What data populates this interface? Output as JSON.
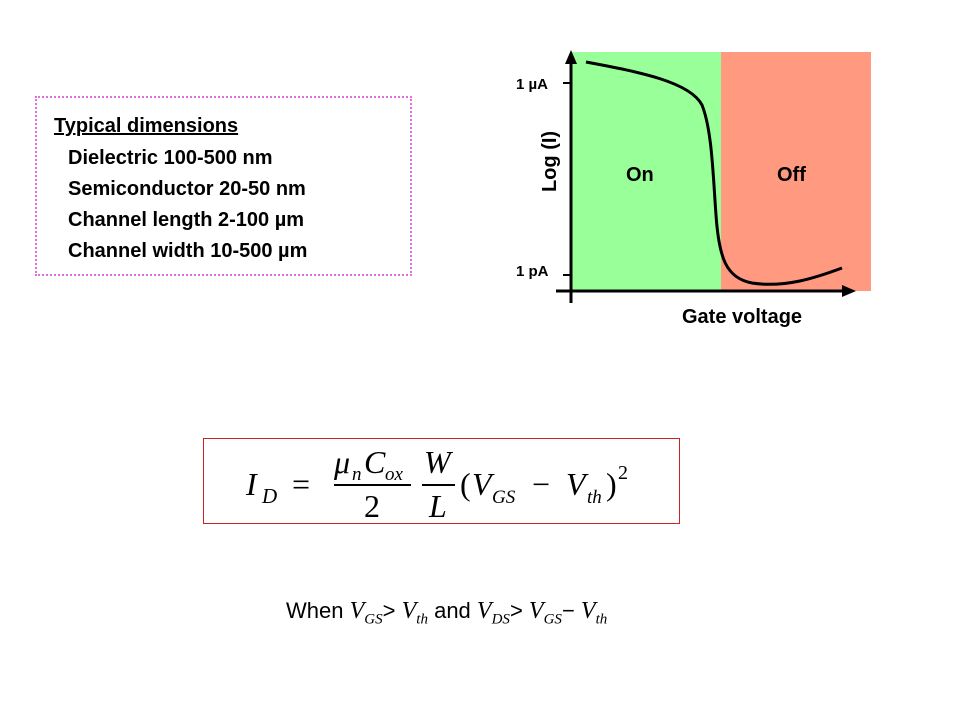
{
  "dimensions": {
    "heading": "Typical dimensions",
    "lines": [
      "Dielectric  100-500 nm",
      "Semiconductor 20-50 nm",
      "Channel length 2-100 µm",
      "Channel width  10-500 µm"
    ]
  },
  "chart": {
    "y_axis_label": "Log (I)",
    "x_axis_label": "Gate voltage",
    "y_tick_top": "1 µA",
    "y_tick_bottom": "1 pA",
    "region_on_label": "On",
    "region_off_label": "Off",
    "colors": {
      "on_region": "#99ff99",
      "off_region": "#ff9980",
      "axis": "#000000"
    }
  },
  "formula": {
    "lhs": "I",
    "lhs_sub": "D",
    "equals": "=",
    "num1_mu": "μ",
    "num1_mu_sub": "n",
    "num1_c": "C",
    "num1_c_sub": "ox",
    "den1": "2",
    "num2": "W",
    "den2": "L",
    "paren_open": "(",
    "v1": "V",
    "v1_sub": "GS",
    "minus": "−",
    "v2": "V",
    "v2_sub": "th",
    "paren_close": ")",
    "exponent": "2"
  },
  "condition": {
    "when": "When",
    "a_sub": "GS",
    "gt1": ">",
    "b_sub": "th",
    "and": "and",
    "c_sub": "DS",
    "gt2": ">",
    "d_sub": "GS",
    "minus": "−",
    "e_sub": "th",
    "v": "V"
  }
}
